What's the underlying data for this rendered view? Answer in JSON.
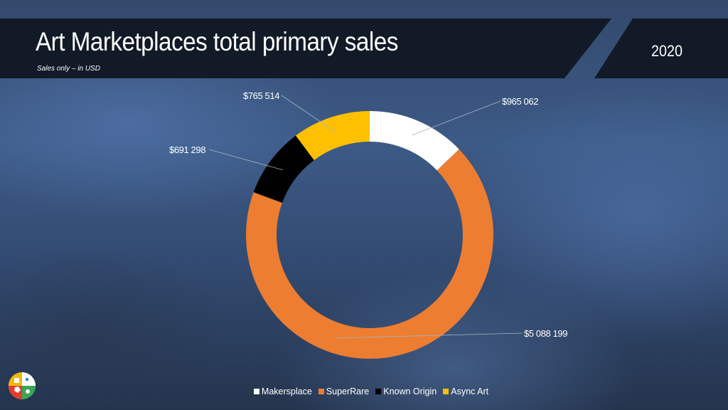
{
  "header": {
    "title": "Art Marketplaces total primary sales",
    "subtitle": "Sales only – in USD",
    "year": "2020"
  },
  "colors": {
    "Makersplace": "#ffffff",
    "SuperRare": "#ed7d31",
    "Known Origin": "#000000",
    "Async Art": "#ffc000"
  },
  "chart_data": {
    "type": "pie",
    "variant": "donut",
    "categories": [
      "Makersplace",
      "SuperRare",
      "Known Origin",
      "Async Art"
    ],
    "values": [
      965062,
      5088199,
      691298,
      765514
    ],
    "data_labels": [
      "$965 062",
      "$5 088 199",
      "$691 298",
      "$765 514"
    ],
    "start_angle_deg": 0,
    "direction": "clockwise",
    "legend": "bottom"
  },
  "legend": {
    "items": [
      {
        "label": "Makersplace",
        "color": "#ffffff"
      },
      {
        "label": "SuperRare",
        "color": "#ed7d31"
      },
      {
        "label": "Known Origin",
        "color": "#000000"
      },
      {
        "label": "Async Art",
        "color": "#ffc000"
      }
    ]
  },
  "logo": {
    "icon": "company-logo-icon"
  }
}
